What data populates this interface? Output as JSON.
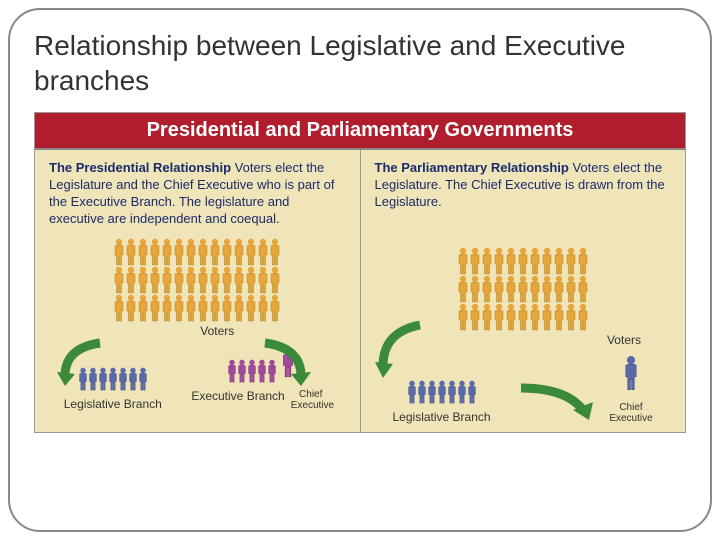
{
  "slide_title": "Relationship between Legislative and Executive branches",
  "banner": "Presidential and Parliamentary Governments",
  "colors": {
    "banner_bg": "#b01e2e",
    "panel_bg": "#f0e5b8",
    "text_navy": "#1a2a6c",
    "voter": "#e6a63a",
    "voter_dark": "#b57e1a",
    "legislative": "#5a6aa8",
    "legislative_dark": "#3a4a88",
    "executive": "#a04a9a",
    "executive_dark": "#7a2a78",
    "arrow": "#3a8a3a"
  },
  "left": {
    "lead": "The Presidential Relationship",
    "desc": " Voters elect the Legislature and the Chief Executive who is part of the Executive Branch. The legislature and executive are independent and coequal.",
    "voters_label": "Voters",
    "voter_rows": [
      14,
      14,
      14
    ],
    "legislative": {
      "label": "Legislative Branch",
      "count": 7
    },
    "executive": {
      "label": "Executive Branch",
      "count": 5
    },
    "chief": {
      "label": "Chief Executive"
    }
  },
  "right": {
    "lead": "The Parliamentary Relationship",
    "desc": " Voters elect the Legislature. The Chief Executive is drawn from the Legislature.",
    "voters_label": "Voters",
    "voter_rows": [
      11,
      11,
      11
    ],
    "legislative": {
      "label": "Legislative Branch",
      "count": 7
    },
    "chief": {
      "label": "Chief Executive"
    }
  }
}
